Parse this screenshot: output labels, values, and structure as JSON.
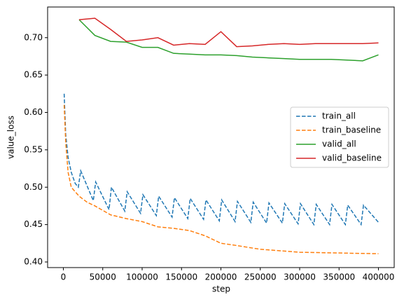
{
  "chart_data": {
    "type": "line",
    "xlabel": "step",
    "ylabel": "value_loss",
    "xlim": [
      -20000,
      420000
    ],
    "ylim": [
      0.3925,
      0.741
    ],
    "xticks": [
      0,
      50000,
      100000,
      150000,
      200000,
      250000,
      300000,
      350000,
      400000
    ],
    "yticks": [
      {
        "value": 0.4,
        "label": "0.40"
      },
      {
        "value": 0.45,
        "label": "0.45"
      },
      {
        "value": 0.5,
        "label": "0.50"
      },
      {
        "value": 0.55,
        "label": "0.55"
      },
      {
        "value": 0.6,
        "label": "0.60"
      },
      {
        "value": 0.65,
        "label": "0.65"
      },
      {
        "value": 0.7,
        "label": "0.70"
      }
    ],
    "legend": "center right",
    "series": [
      {
        "name": "train_all",
        "color": "#1f77b4",
        "linestyle": "dashed",
        "x": [
          1000,
          3000,
          6000,
          10000,
          15000,
          19000,
          22000,
          38000,
          41000,
          58000,
          61000,
          78000,
          81000,
          98000,
          101000,
          118000,
          121000,
          138000,
          141000,
          158000,
          161000,
          178000,
          181000,
          198000,
          201000,
          218000,
          221000,
          238000,
          241000,
          258000,
          261000,
          278000,
          281000,
          298000,
          301000,
          318000,
          321000,
          338000,
          341000,
          358000,
          361000,
          378000,
          381000,
          400000
        ],
        "values": [
          0.625,
          0.57,
          0.54,
          0.52,
          0.505,
          0.5,
          0.522,
          0.482,
          0.507,
          0.47,
          0.5,
          0.468,
          0.494,
          0.465,
          0.49,
          0.462,
          0.488,
          0.46,
          0.486,
          0.458,
          0.485,
          0.457,
          0.483,
          0.455,
          0.483,
          0.454,
          0.481,
          0.453,
          0.48,
          0.452,
          0.479,
          0.452,
          0.478,
          0.451,
          0.478,
          0.45,
          0.477,
          0.45,
          0.477,
          0.45,
          0.476,
          0.45,
          0.476,
          0.453
        ]
      },
      {
        "name": "train_baseline",
        "color": "#ff7f0e",
        "linestyle": "dashed",
        "x": [
          1000,
          3000,
          6000,
          10000,
          20000,
          30000,
          40000,
          60000,
          80000,
          100000,
          120000,
          140000,
          160000,
          180000,
          200000,
          220000,
          250000,
          300000,
          350000,
          400000
        ],
        "values": [
          0.61,
          0.56,
          0.52,
          0.5,
          0.488,
          0.48,
          0.475,
          0.463,
          0.458,
          0.454,
          0.447,
          0.445,
          0.442,
          0.435,
          0.425,
          0.422,
          0.417,
          0.413,
          0.412,
          0.411
        ]
      },
      {
        "name": "valid_all",
        "color": "#2ca02c",
        "linestyle": "solid",
        "x": [
          20000,
          40000,
          60000,
          80000,
          100000,
          120000,
          140000,
          160000,
          180000,
          200000,
          220000,
          240000,
          260000,
          280000,
          300000,
          320000,
          340000,
          360000,
          380000,
          400000
        ],
        "values": [
          0.724,
          0.703,
          0.695,
          0.694,
          0.687,
          0.687,
          0.679,
          0.678,
          0.677,
          0.677,
          0.676,
          0.674,
          0.673,
          0.672,
          0.671,
          0.671,
          0.671,
          0.67,
          0.669,
          0.677
        ]
      },
      {
        "name": "valid_baseline",
        "color": "#d62728",
        "linestyle": "solid",
        "x": [
          20000,
          40000,
          60000,
          80000,
          100000,
          120000,
          140000,
          160000,
          180000,
          200000,
          220000,
          240000,
          260000,
          280000,
          300000,
          320000,
          340000,
          360000,
          380000,
          400000
        ],
        "values": [
          0.724,
          0.726,
          0.711,
          0.695,
          0.697,
          0.7,
          0.69,
          0.692,
          0.691,
          0.708,
          0.688,
          0.689,
          0.691,
          0.692,
          0.691,
          0.692,
          0.692,
          0.692,
          0.692,
          0.693
        ]
      }
    ]
  }
}
